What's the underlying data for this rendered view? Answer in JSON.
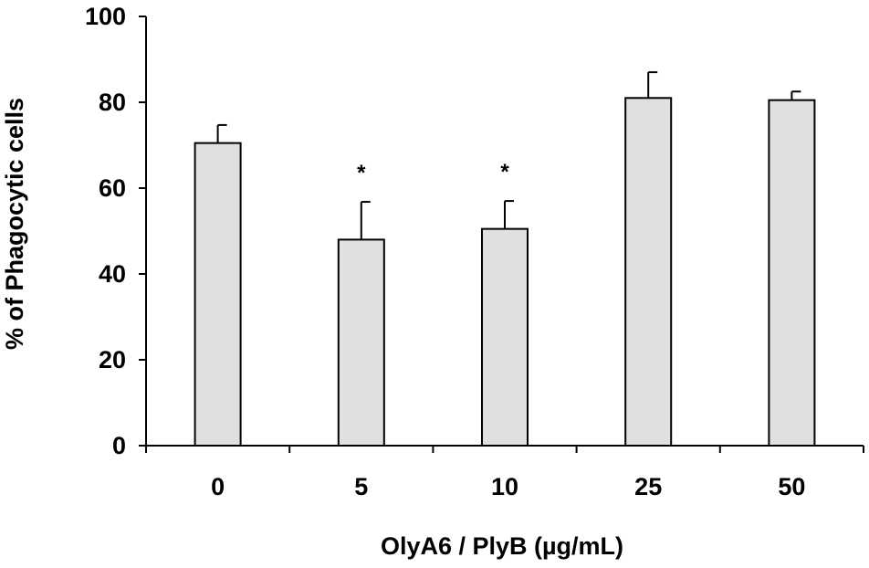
{
  "chart_data": {
    "type": "bar",
    "categories": [
      "0",
      "5",
      "10",
      "25",
      "50"
    ],
    "values": [
      70.5,
      48,
      50.5,
      81,
      80.5
    ],
    "error_upper": [
      4.2,
      8.8,
      6.5,
      6.0,
      2.0
    ],
    "significance": [
      "",
      "*",
      "*",
      "",
      ""
    ],
    "ylabel": "% of Phagocytic cells",
    "xlabel": "OlyA6 / PlyB (µg/mL)",
    "ylim": [
      0,
      100
    ],
    "yticks": [
      0,
      20,
      40,
      60,
      80,
      100
    ],
    "grid": false,
    "legend": "none",
    "colors": {
      "bar_fill": "#e0e0e0",
      "bar_stroke": "#000000",
      "axis": "#000000"
    }
  }
}
